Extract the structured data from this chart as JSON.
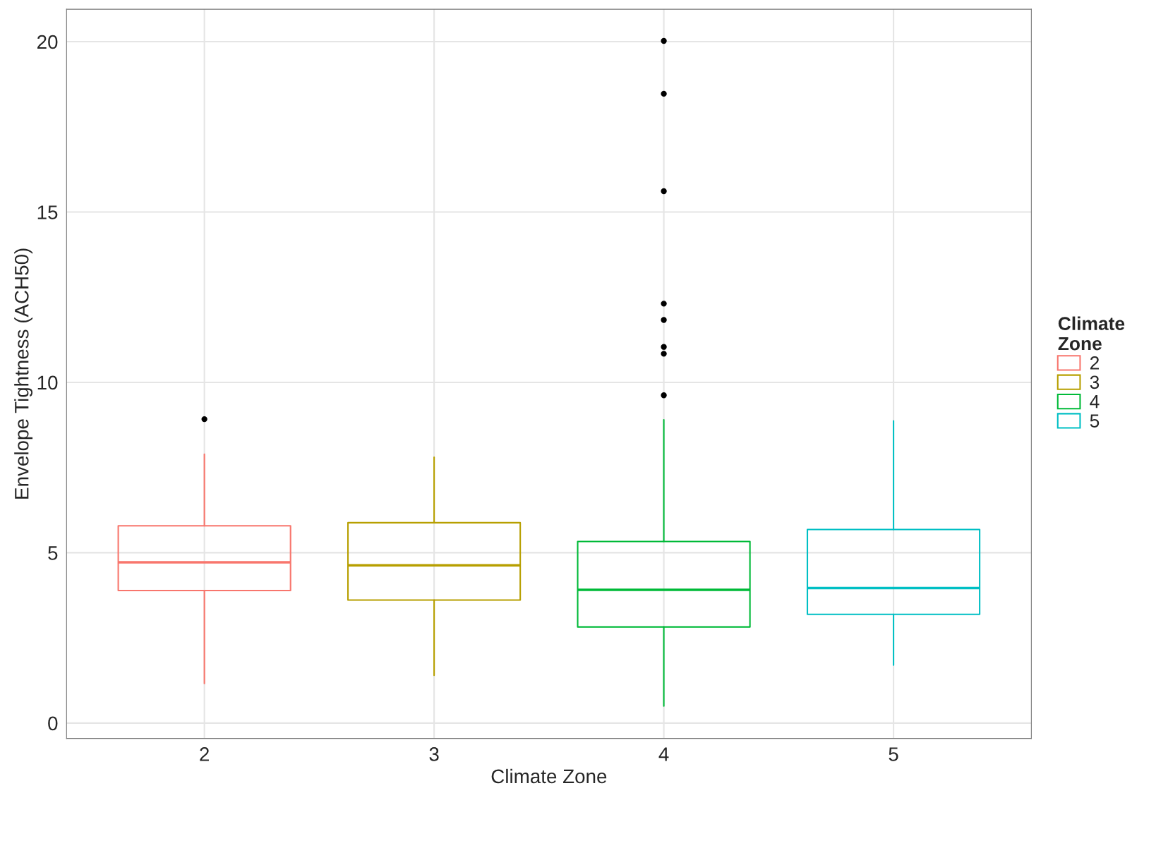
{
  "chart_data": {
    "type": "box",
    "xlabel": "Climate Zone",
    "ylabel": "Envelope Tightness (ACH50)",
    "legend_title": "Climate Zone",
    "categories": [
      "2",
      "3",
      "4",
      "5"
    ],
    "series": [
      {
        "name": "2",
        "color": "#f8766d",
        "x": [
          "2"
        ],
        "boxes": [
          {
            "low": 1.16,
            "q1": 3.89,
            "median": 4.72,
            "q3": 5.79,
            "high": 7.89,
            "outliers": [
              8.92
            ]
          }
        ]
      },
      {
        "name": "3",
        "color": "#b79f00",
        "x": [
          "3"
        ],
        "boxes": [
          {
            "low": 1.4,
            "q1": 3.61,
            "median": 4.63,
            "q3": 5.88,
            "high": 7.8
          }
        ]
      },
      {
        "name": "4",
        "color": "#00ba38",
        "x": [
          "4"
        ],
        "boxes": [
          {
            "low": 0.5,
            "q1": 2.82,
            "median": 3.91,
            "q3": 5.33,
            "high": 8.9,
            "outliers": [
              9.62,
              10.84,
              11.04,
              11.83,
              12.31,
              15.61,
              18.47,
              20.02
            ]
          }
        ]
      },
      {
        "name": "5",
        "color": "#00bfc4",
        "x": [
          "5"
        ],
        "boxes": [
          {
            "low": 1.7,
            "q1": 3.19,
            "median": 3.96,
            "q3": 5.68,
            "high": 8.87
          }
        ]
      }
    ],
    "ylim": [
      -0.45,
      20.95
    ],
    "yticks": [
      0,
      5,
      10,
      15,
      20
    ],
    "grid": true,
    "legend": "right"
  }
}
